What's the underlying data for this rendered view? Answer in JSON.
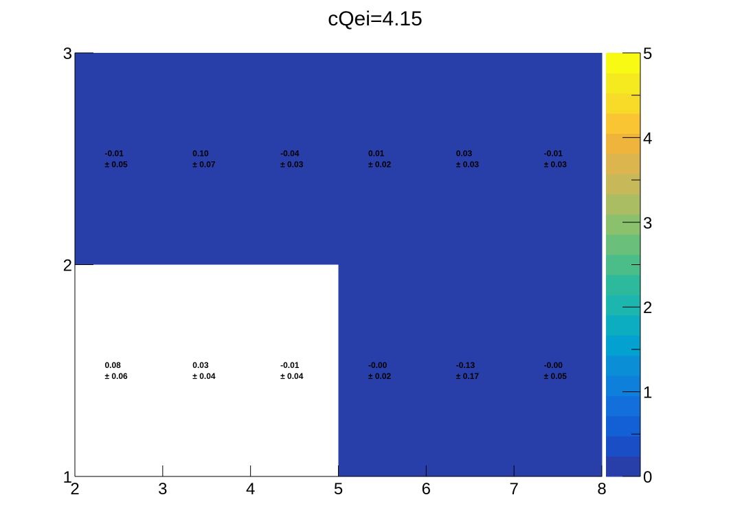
{
  "chart_data": {
    "type": "heatmap",
    "title": "cQei=4.15",
    "xlabel": "",
    "ylabel": "",
    "x_edges": [
      2,
      3,
      4,
      5,
      6,
      7,
      8
    ],
    "y_edges": [
      1,
      2,
      3
    ],
    "xlim": [
      2,
      8
    ],
    "ylim": [
      1,
      3
    ],
    "x_ticks": [
      "2",
      "3",
      "4",
      "5",
      "6",
      "7",
      "8"
    ],
    "y_ticks": [
      "1",
      "2",
      "3"
    ],
    "z_range": [
      0,
      5
    ],
    "z_ticks": [
      "0",
      "1",
      "2",
      "3",
      "4",
      "5"
    ],
    "colormap": "parula",
    "empty_color": "#ffffff",
    "cells": [
      {
        "x": 2,
        "y": 2,
        "value": "-0.01",
        "error": "± 0.05",
        "filled": true
      },
      {
        "x": 3,
        "y": 2,
        "value": "0.10",
        "error": "± 0.07",
        "filled": true
      },
      {
        "x": 4,
        "y": 2,
        "value": "-0.04",
        "error": "± 0.03",
        "filled": true
      },
      {
        "x": 5,
        "y": 2,
        "value": "0.01",
        "error": "± 0.02",
        "filled": true
      },
      {
        "x": 6,
        "y": 2,
        "value": "0.03",
        "error": "± 0.03",
        "filled": true
      },
      {
        "x": 7,
        "y": 2,
        "value": "-0.01",
        "error": "± 0.03",
        "filled": true
      },
      {
        "x": 2,
        "y": 1,
        "value": "0.08",
        "error": "± 0.06",
        "filled": false
      },
      {
        "x": 3,
        "y": 1,
        "value": "0.03",
        "error": "± 0.04",
        "filled": false
      },
      {
        "x": 4,
        "y": 1,
        "value": "-0.01",
        "error": "± 0.04",
        "filled": false
      },
      {
        "x": 5,
        "y": 1,
        "value": "-0.00",
        "error": "± 0.02",
        "filled": true
      },
      {
        "x": 6,
        "y": 1,
        "value": "-0.13",
        "error": "± 0.17",
        "filled": true
      },
      {
        "x": 7,
        "y": 1,
        "value": "-0.00",
        "error": "± 0.05",
        "filled": true
      }
    ],
    "palette": [
      "#283ea8",
      "#1a4ec6",
      "#1360d6",
      "#126fdc",
      "#0f7fdc",
      "#0a8fd6",
      "#02a1cf",
      "#0cadc0",
      "#1db6af",
      "#2dba9c",
      "#4bbd88",
      "#6ac07a",
      "#8bc06c",
      "#aabd62",
      "#c7b95a",
      "#dcb54f",
      "#eeb43b",
      "#fac532",
      "#f8da29",
      "#f5ea20",
      "#f9fa13"
    ]
  }
}
